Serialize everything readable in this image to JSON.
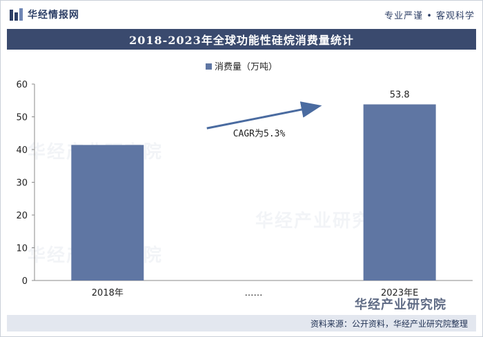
{
  "header": {
    "brand": "华经情报网",
    "slogan": "专业严谨 • 客观科学"
  },
  "colors": {
    "bar": "#5f76a3",
    "titlebar": "#3a4a6e",
    "arrow": "#4a6ba0"
  },
  "chart_data": {
    "type": "bar",
    "title": "2018-2023年全球功能性硅烷消费量统计",
    "categories": [
      "2018年",
      "……",
      "2023年E"
    ],
    "series": [
      {
        "name": "消费量（万吨）",
        "values": [
          41.4,
          null,
          53.8
        ]
      }
    ],
    "data_labels": [
      "",
      "",
      "53.8"
    ],
    "yticks": [
      "0",
      "10",
      "20",
      "30",
      "40",
      "50",
      "60"
    ],
    "ylim": [
      0,
      60
    ],
    "grid": false,
    "legend": "top-center",
    "annotation": "CAGR为5.3%"
  },
  "footer": {
    "source": "资料来源：公开资料，华经产业研究院整理",
    "brand_mark": "华经产业研究院"
  },
  "watermark": "华经产业研究院"
}
